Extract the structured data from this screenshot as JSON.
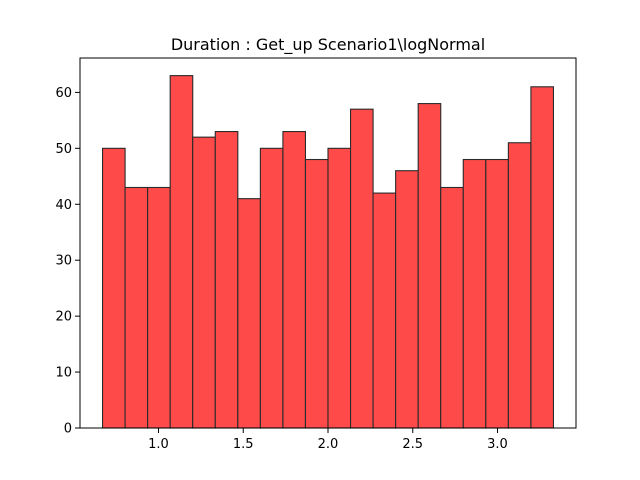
{
  "chart_data": {
    "type": "bar",
    "title": "Duration : Get_up Scenario1\\logNormal",
    "xlabel": "",
    "ylabel": "",
    "bin_edges": [
      0.67,
      0.803,
      0.936,
      1.069,
      1.202,
      1.335,
      1.468,
      1.601,
      1.734,
      1.867,
      2.0,
      2.133,
      2.266,
      2.399,
      2.532,
      2.665,
      2.798,
      2.931,
      3.064,
      3.197,
      3.33
    ],
    "values": [
      50,
      43,
      43,
      63,
      52,
      53,
      41,
      50,
      53,
      48,
      50,
      57,
      42,
      46,
      58,
      43,
      48,
      48,
      51,
      61
    ],
    "xlim": [
      0.537,
      3.463
    ],
    "ylim": [
      0,
      66.15
    ],
    "xticks": [
      1.0,
      1.5,
      2.0,
      2.5,
      3.0
    ],
    "xtick_labels": [
      "1.0",
      "1.5",
      "2.0",
      "2.5",
      "3.0"
    ],
    "yticks": [
      0,
      10,
      20,
      30,
      40,
      50,
      60
    ],
    "ytick_labels": [
      "0",
      "10",
      "20",
      "30",
      "40",
      "50",
      "60"
    ],
    "bar_color": "#ff4a4a",
    "edge_color": "#2a2a2a",
    "grid": false,
    "legend": "none"
  }
}
